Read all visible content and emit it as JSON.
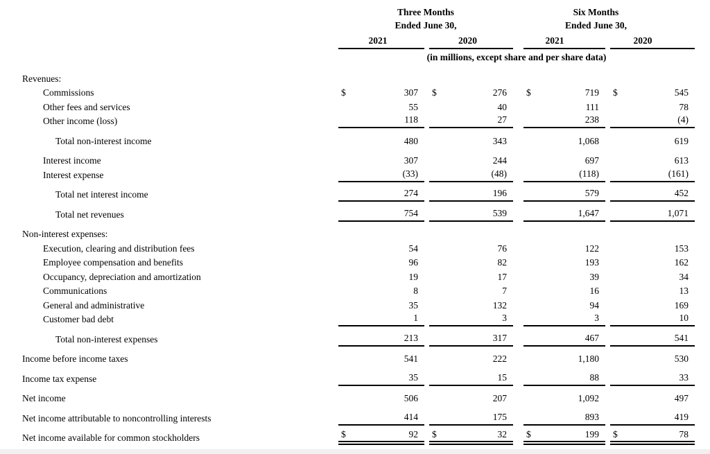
{
  "header": {
    "col_groups": [
      {
        "title_line1": "Three Months",
        "title_line2": "Ended June 30,",
        "years": [
          "2021",
          "2020"
        ]
      },
      {
        "title_line1": "Six Months",
        "title_line2": "Ended June 30,",
        "years": [
          "2021",
          "2020"
        ]
      }
    ],
    "units_note": "(in millions, except share and per share data)"
  },
  "table": {
    "currency_symbol": "$",
    "columns": [
      "Three Months Ended June 30, 2021",
      "Three Months Ended June 30, 2020",
      "Six Months Ended June 30, 2021",
      "Six Months Ended June 30, 2020"
    ],
    "rows": [
      {
        "label": "Revenues:",
        "indent": 0,
        "section": true,
        "values": null
      },
      {
        "label": "Commissions",
        "indent": 1,
        "dollar": true,
        "values": [
          "307",
          "276",
          "719",
          "545"
        ]
      },
      {
        "label": "Other fees and services",
        "indent": 1,
        "values": [
          "55",
          "40",
          "111",
          "78"
        ]
      },
      {
        "label": "Other income (loss)",
        "indent": 1,
        "values": [
          "118",
          "27",
          "238",
          "(4)"
        ],
        "rule_below": true
      },
      {
        "label": "Total non-interest income",
        "indent": 2,
        "values": [
          "480",
          "343",
          "1,068",
          "619"
        ],
        "spaced": true
      },
      {
        "label": "Interest income",
        "indent": 1,
        "values": [
          "307",
          "244",
          "697",
          "613"
        ],
        "spaced": true
      },
      {
        "label": "Interest expense",
        "indent": 1,
        "values": [
          "(33)",
          "(48)",
          "(118)",
          "(161)"
        ],
        "rule_below": true
      },
      {
        "label": "Total net interest income",
        "indent": 2,
        "values": [
          "274",
          "196",
          "579",
          "452"
        ],
        "spaced": true,
        "rule_below": true
      },
      {
        "label": "Total net revenues",
        "indent": 2,
        "values": [
          "754",
          "539",
          "1,647",
          "1,071"
        ],
        "spaced": true,
        "rule_below": true
      },
      {
        "label": "Non-interest expenses:",
        "indent": 0,
        "section": true,
        "values": null,
        "spaced": true
      },
      {
        "label": "Execution, clearing and distribution fees",
        "indent": 1,
        "values": [
          "54",
          "76",
          "122",
          "153"
        ]
      },
      {
        "label": "Employee compensation and benefits",
        "indent": 1,
        "values": [
          "96",
          "82",
          "193",
          "162"
        ]
      },
      {
        "label": "Occupancy, depreciation and amortization",
        "indent": 1,
        "values": [
          "19",
          "17",
          "39",
          "34"
        ]
      },
      {
        "label": "Communications",
        "indent": 1,
        "values": [
          "8",
          "7",
          "16",
          "13"
        ]
      },
      {
        "label": "General and administrative",
        "indent": 1,
        "values": [
          "35",
          "132",
          "94",
          "169"
        ]
      },
      {
        "label": "Customer bad debt",
        "indent": 1,
        "values": [
          "1",
          "3",
          "3",
          "10"
        ],
        "rule_below": true
      },
      {
        "label": "Total non-interest expenses",
        "indent": 2,
        "values": [
          "213",
          "317",
          "467",
          "541"
        ],
        "spaced": true,
        "rule_below": true
      },
      {
        "label": "Income before income taxes",
        "indent": 0,
        "values": [
          "541",
          "222",
          "1,180",
          "530"
        ],
        "spaced": true
      },
      {
        "label": "Income tax expense",
        "indent": 0,
        "values": [
          "35",
          "15",
          "88",
          "33"
        ],
        "spaced": true,
        "rule_below": true
      },
      {
        "label": "Net income",
        "indent": 0,
        "values": [
          "506",
          "207",
          "1,092",
          "497"
        ],
        "spaced": true
      },
      {
        "label": "Net income attributable to noncontrolling interests",
        "indent": 0,
        "values": [
          "414",
          "175",
          "893",
          "419"
        ],
        "spaced": true,
        "rule_below": true
      },
      {
        "label": "Net income available for common stockholders",
        "indent": 0,
        "dollar": true,
        "values": [
          "92",
          "32",
          "199",
          "78"
        ],
        "spaced": true,
        "double_rule_below": true
      }
    ]
  }
}
